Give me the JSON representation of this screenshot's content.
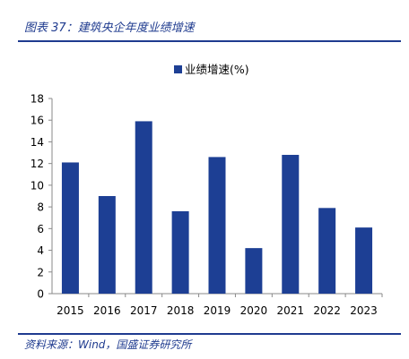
{
  "figure": {
    "title": "图表 37：建筑央企年度业绩增速",
    "source": "资料来源：Wind，国盛证券研究所"
  },
  "colors": {
    "bar": "#1d3f94",
    "accent": "#1f3b8f",
    "axis": "#8a8a8a"
  },
  "chart_data": {
    "type": "bar",
    "title": "",
    "xlabel": "",
    "ylabel": "",
    "categories": [
      "2015",
      "2016",
      "2017",
      "2018",
      "2019",
      "2020",
      "2021",
      "2022",
      "2023"
    ],
    "series": [
      {
        "name": "业绩增速(%)",
        "values": [
          12.1,
          9.0,
          15.9,
          7.6,
          12.6,
          4.2,
          12.8,
          7.9,
          6.1
        ]
      }
    ],
    "ylim": [
      0,
      18
    ],
    "yticks": [
      0,
      2,
      4,
      6,
      8,
      10,
      12,
      14,
      16,
      18
    ],
    "grid": false,
    "legend": "top-center"
  }
}
